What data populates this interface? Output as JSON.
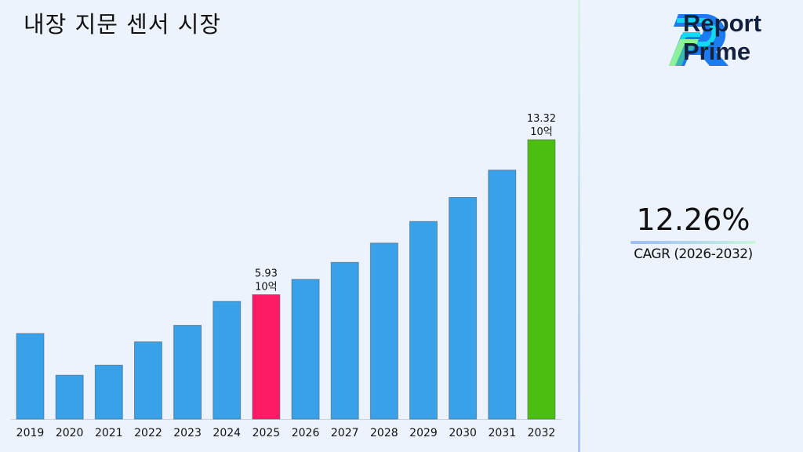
{
  "title": "내장 지문 센서 시장",
  "brand": {
    "line1": "Report",
    "line2": "Prime"
  },
  "cagr": {
    "value": "12.26%",
    "label": "CAGR (2026-2032)"
  },
  "colors": {
    "bar": "#38a1e8",
    "highlight_start": "#ff1a66",
    "highlight_end": "#4cbe10",
    "background": "#ecf3fd"
  },
  "chart_data": {
    "type": "bar",
    "title": "",
    "xlabel": "",
    "ylabel": "",
    "categories": [
      "2019",
      "2020",
      "2021",
      "2022",
      "2023",
      "2024",
      "2025",
      "2026",
      "2027",
      "2028",
      "2029",
      "2030",
      "2031",
      "2032"
    ],
    "values": [
      4.08,
      2.09,
      2.57,
      3.68,
      4.47,
      5.61,
      5.93,
      6.66,
      7.47,
      8.39,
      9.42,
      10.57,
      11.87,
      13.32
    ],
    "ylim": [
      0,
      13.32
    ],
    "grid": false,
    "data_labels": [
      {
        "category": "2025",
        "value": "5.93",
        "unit": "10억"
      },
      {
        "category": "2032",
        "value": "13.32",
        "unit": "10억"
      }
    ]
  }
}
